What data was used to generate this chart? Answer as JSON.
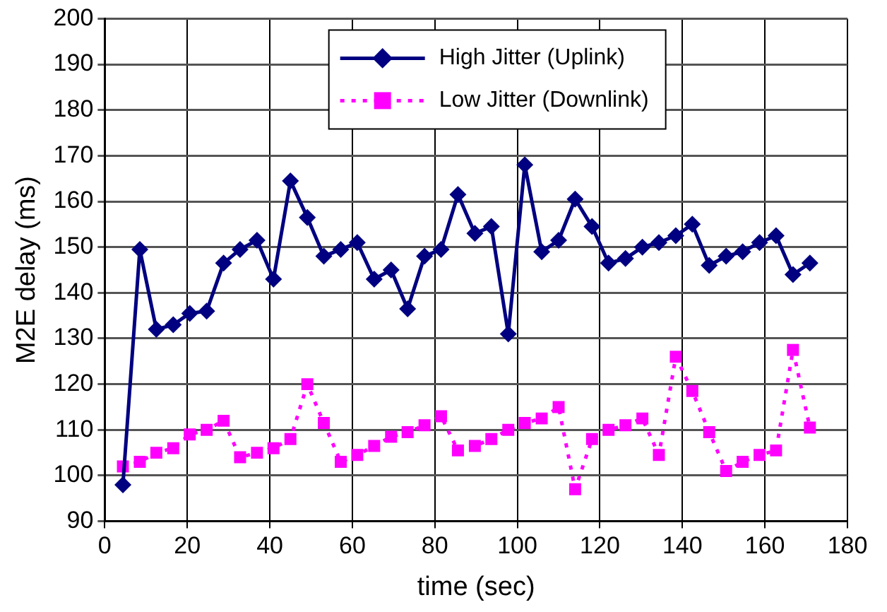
{
  "chart_data": {
    "type": "line",
    "xlabel": "time (sec)",
    "ylabel": "M2E delay (ms)",
    "x": [
      4.4,
      8.5,
      12.5,
      16.6,
      20.6,
      24.7,
      28.8,
      32.8,
      36.9,
      40.9,
      45.0,
      49.1,
      53.1,
      57.2,
      61.2,
      65.3,
      69.4,
      73.4,
      77.5,
      81.5,
      85.6,
      89.7,
      93.7,
      97.8,
      101.8,
      105.9,
      110.0,
      114.0,
      118.1,
      122.1,
      126.2,
      130.3,
      134.3,
      138.4,
      142.4,
      146.5,
      150.6,
      154.6,
      158.7,
      162.7,
      166.8,
      170.9
    ],
    "series": [
      {
        "name": "High Jitter (Uplink)",
        "color": "#000080",
        "marker": "diamond",
        "line_style": "solid",
        "values": [
          98,
          149.5,
          132,
          133,
          135.5,
          136,
          146.5,
          149.5,
          151.5,
          143,
          164.5,
          156.5,
          148,
          149.5,
          151,
          143,
          145,
          136.5,
          148,
          149.5,
          161.5,
          153,
          154.5,
          131,
          168,
          149,
          151.5,
          160.5,
          154.5,
          146.5,
          147.5,
          150,
          151,
          152.5,
          155,
          146,
          148,
          149,
          151,
          152.5,
          144,
          146.5
        ]
      },
      {
        "name": "Low Jitter (Downlink)",
        "color": "#ff00ff",
        "marker": "square",
        "line_style": "dotted",
        "values": [
          102,
          103,
          105,
          106,
          109,
          110,
          112,
          104,
          105,
          106,
          108,
          120,
          111.5,
          103,
          104.5,
          106.5,
          108.5,
          109.5,
          111,
          113,
          105.5,
          106.5,
          108,
          110,
          111.5,
          112.5,
          115,
          97,
          108,
          110,
          111,
          112.5,
          104.5,
          126,
          118.5,
          109.5,
          101,
          103,
          104.5,
          105.5,
          127.5,
          110.5
        ]
      }
    ],
    "xlim": [
      0,
      180
    ],
    "xticks": [
      0,
      20,
      40,
      60,
      80,
      100,
      120,
      140,
      160,
      180
    ],
    "ylim": [
      90,
      200
    ],
    "yticks": [
      90,
      100,
      110,
      120,
      130,
      140,
      150,
      160,
      170,
      180,
      190,
      200
    ],
    "grid": true,
    "legend": "top"
  }
}
